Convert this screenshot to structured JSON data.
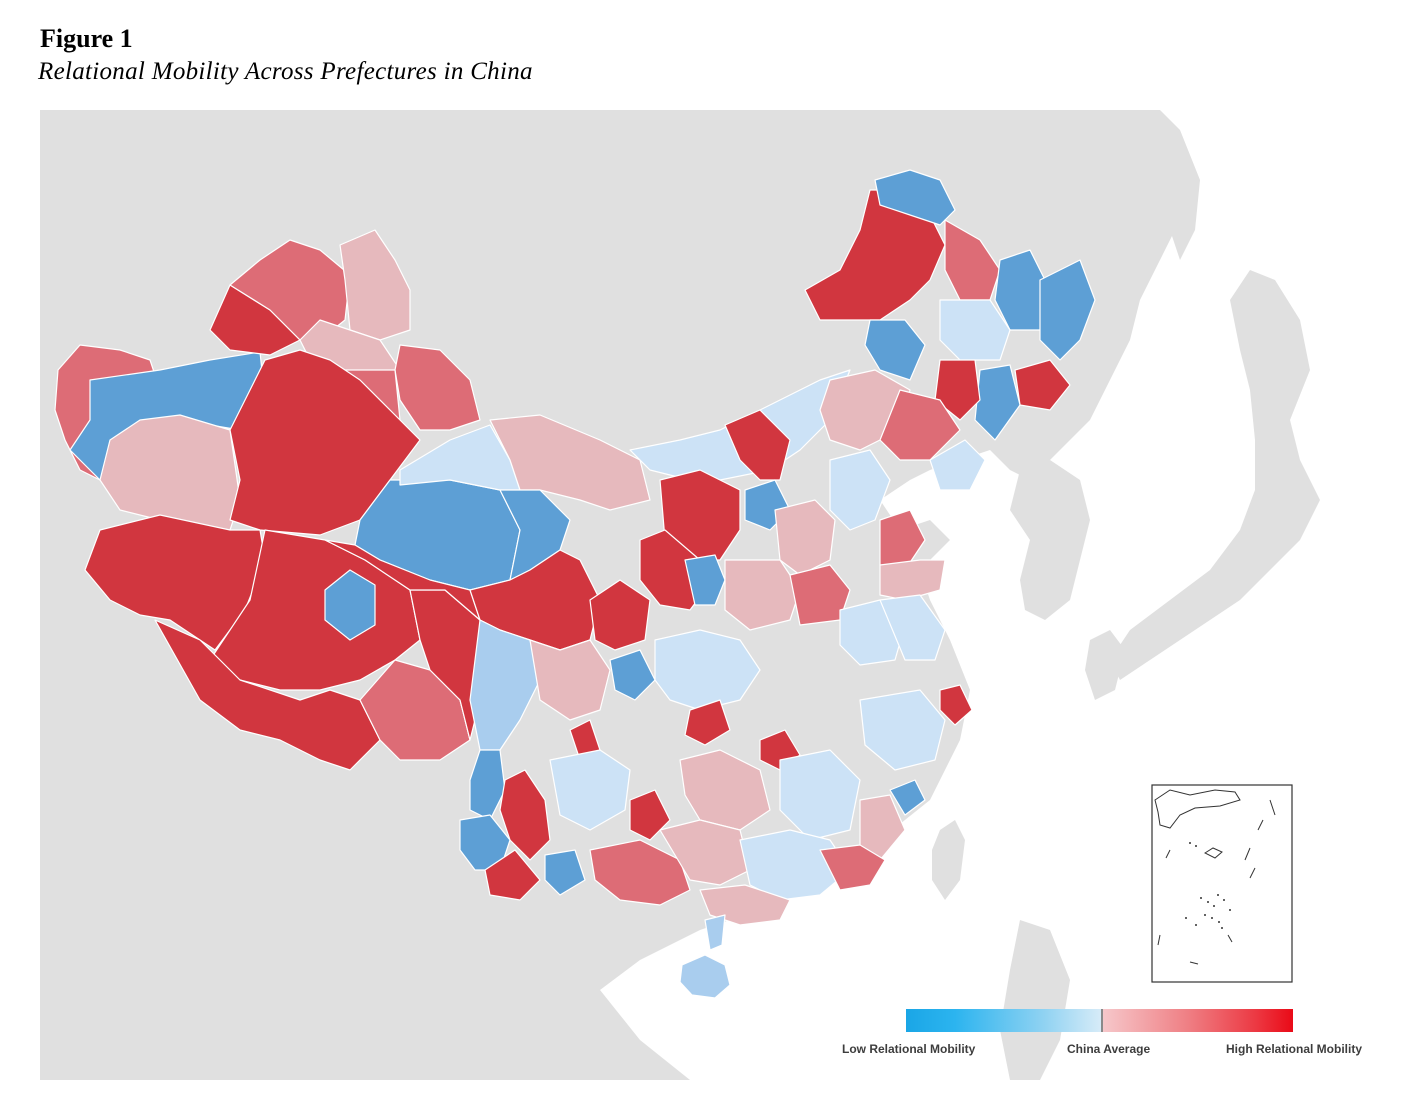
{
  "figure": {
    "label": "Figure 1",
    "title": "Relational Mobility Across Prefectures in China"
  },
  "legend": {
    "low_label": "Low Relational Mobility",
    "mid_label": "China Average",
    "high_label": "High Relational Mobility",
    "scale_colors": {
      "low": "#1aa6e6",
      "low_light": "#d8ecf8",
      "high_light": "#f6c8cb",
      "high": "#ea0a17"
    }
  },
  "map": {
    "subject": "Prefectures of China shaded by relational mobility",
    "colors": {
      "background_land": "#e0e0e0",
      "sea": "#ffffff",
      "strong_high": "#d1363f",
      "high": "#dd6c76",
      "light_high": "#e6b9bd",
      "light_low": "#cce2f6",
      "low": "#a9cdee",
      "strong_low": "#5d9fd5"
    },
    "inset": "South China Sea islands inset"
  }
}
